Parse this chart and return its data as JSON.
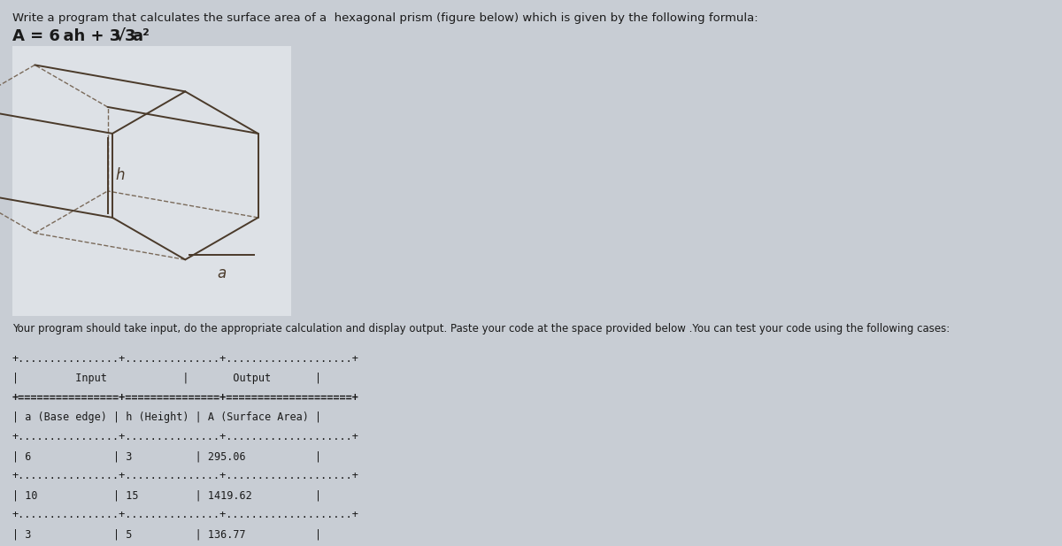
{
  "bg_color": "#c8cdd4",
  "white_box_color": "#d8dde3",
  "title_line1": "Write a program that calculates the surface area of a  hexagonal prism (figure below) which is given by the following formula:",
  "formula_parts": [
    "A = 6 a h + 3√3 a²"
  ],
  "desc_text": "Your program should take input, do the appropriate calculation and display output. Paste your code at the space provided below .You can test your code using the following cases:",
  "font_color": "#1a1a1a",
  "mono_font": "monospace",
  "table_content": [
    [
      "+................+...............+....................+",
      false
    ],
    [
      "|         Input         |        Output      |",
      false
    ],
    [
      "+================+===============+====================+",
      true
    ],
    [
      "| a (Base edge) | h (Height) | A (Surface Area) |",
      false
    ],
    [
      "+................+...............+....................+",
      false
    ],
    [
      "| 6             | 3          | 295.06           |",
      false
    ],
    [
      "+................+...............+....................+",
      false
    ],
    [
      "| 10            | 15         | 1419.62          |",
      false
    ],
    [
      "+................+...............+....................+",
      false
    ],
    [
      "| 3             | 5          | 136.77           |",
      false
    ],
    [
      "+................+...............+....................+",
      false
    ]
  ],
  "prism_color": "#4a3a2a",
  "prism_lw": 1.4,
  "prism_hidden_lw": 1.0,
  "prism_hidden_color": "#7a6a5a"
}
